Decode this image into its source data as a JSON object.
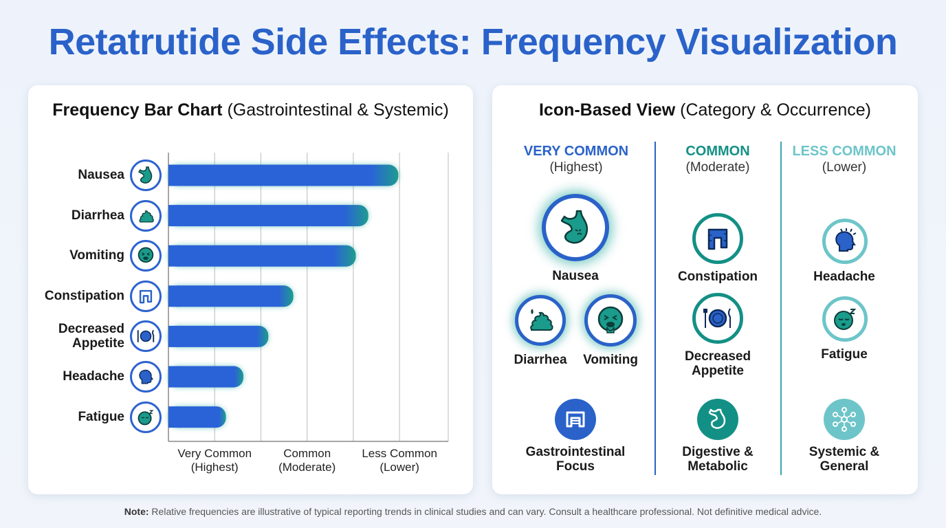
{
  "title": "Retatrutide Side Effects: Frequency Visualization",
  "left_card": {
    "title_bold": "Frequency Bar Chart",
    "title_rest": " (Gastrointestinal & Systemic)"
  },
  "chart_data": {
    "type": "bar",
    "orientation": "horizontal",
    "title": "Frequency Bar Chart (Gastrointestinal & Systemic)",
    "categories": [
      "Nausea",
      "Diarrhea",
      "Vomiting",
      "Constipation",
      "Decreased Appetite",
      "Headache",
      "Fatigue"
    ],
    "values": [
      92,
      80,
      75,
      50,
      40,
      30,
      23
    ],
    "xlim": [
      0,
      112
    ],
    "xtick_labels": [
      {
        "line1": "Very Common",
        "line2": "(Highest)",
        "at": 18.5
      },
      {
        "line1": "Common",
        "line2": "(Moderate)",
        "at": 55.5
      },
      {
        "line1": "Less Common",
        "line2": "(Lower)",
        "at": 92.5
      }
    ],
    "gridlines_at": [
      18.5,
      37,
      55.5,
      74,
      92.5,
      112
    ],
    "grid": true,
    "bar_color": "#2a62d8",
    "glow_color": "#1fa59a"
  },
  "right_card": {
    "title_bold": "Icon-Based View",
    "title_rest": " (Category & Occurrence)",
    "columns": [
      {
        "head": "VERY COMMON",
        "sub": "(Highest)",
        "color": "#2a62c9"
      },
      {
        "head": "COMMON",
        "sub": "(Moderate)",
        "color": "#139085"
      },
      {
        "head": "LESS COMMON",
        "sub": "(Lower)",
        "color": "#6dc5c9"
      }
    ],
    "very_common": {
      "main": "Nausea",
      "second": "Diarrhea",
      "third": "Vomiting",
      "category_line1": "Gastrointestinal",
      "category_line2": "Focus"
    },
    "common": {
      "first": "Constipation",
      "second_line1": "Decreased",
      "second_line2": "Appetite",
      "category_line1": "Digestive &",
      "category_line2": "Metabolic"
    },
    "less_common": {
      "first": "Headache",
      "second": "Fatigue",
      "category_line1": "Systemic &",
      "category_line2": "General"
    }
  },
  "note": {
    "label": "Note:",
    "text": " Relative frequencies are illustrative of typical reporting trends in clinical studies and can vary. Consult a healthcare professional. Not definitive medical advice."
  },
  "colors": {
    "blue": "#2a62c9",
    "teal": "#139085",
    "light_teal": "#6dc5c9"
  }
}
